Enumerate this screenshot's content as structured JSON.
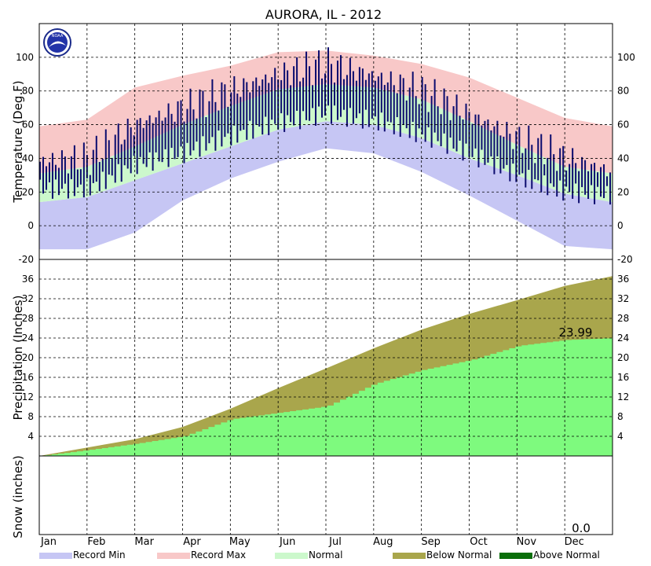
{
  "chart_data": {
    "type": "area",
    "title": "AURORA, IL - 2012",
    "months": [
      "Jan",
      "Feb",
      "Mar",
      "Apr",
      "May",
      "Jun",
      "Jul",
      "Aug",
      "Sep",
      "Oct",
      "Nov",
      "Dec"
    ],
    "temperature": {
      "ylabel": "Temperature (Deg.F)",
      "ylim": [
        -20,
        120
      ],
      "yticks": [
        -20,
        0,
        20,
        40,
        60,
        80,
        100
      ],
      "normal_high": [
        31,
        35,
        47,
        60,
        71,
        81,
        84,
        82,
        75,
        62,
        48,
        35,
        31
      ],
      "normal_low": [
        14,
        17,
        27,
        37,
        47,
        57,
        62,
        60,
        52,
        40,
        30,
        19,
        14
      ],
      "record_high": [
        59,
        63,
        82,
        89,
        95,
        103,
        104,
        101,
        96,
        88,
        76,
        64,
        59
      ],
      "record_low": [
        -14,
        -14,
        -4,
        15,
        28,
        38,
        46,
        43,
        32,
        18,
        3,
        -12,
        -14
      ],
      "observed_high": [
        38,
        40,
        60,
        70,
        80,
        90,
        96,
        89,
        80,
        66,
        52,
        40,
        32
      ],
      "observed_low": [
        22,
        25,
        38,
        41,
        50,
        61,
        70,
        64,
        52,
        40,
        30,
        23,
        20
      ]
    },
    "precipitation": {
      "ylabel": "Precipitation (Inches)",
      "ylim": [
        0,
        40
      ],
      "yticks": [
        4,
        8,
        12,
        16,
        20,
        24,
        28,
        32,
        36
      ],
      "normal_cumulative": [
        0,
        1.7,
        3.4,
        5.9,
        9.6,
        13.8,
        17.8,
        21.9,
        25.7,
        28.9,
        31.7,
        34.6,
        36.6
      ],
      "observed_cumulative": [
        0,
        1.2,
        2.5,
        4.0,
        7.5,
        8.8,
        10.1,
        14.7,
        17.5,
        19.5,
        22.4,
        23.6,
        23.99
      ],
      "total_label": "23.99"
    },
    "snow": {
      "ylabel": "Snow (inches)",
      "total_label": "0.0"
    },
    "legend": [
      {
        "label": "Record Min",
        "color": "#c6c6f4"
      },
      {
        "label": "Record Max",
        "color": "#f8c8c8"
      },
      {
        "label": "Normal",
        "color": "#ccf8cc"
      },
      {
        "label": "Below Normal",
        "color": "#a9a64c"
      },
      {
        "label": "Above Normal",
        "color": "#0a6e0a"
      }
    ],
    "colors": {
      "observed": "#0b0b6e",
      "precip_observed": "#7efa7e",
      "precip_normal": "#a9a64c"
    },
    "logo_text": "NOAA"
  }
}
